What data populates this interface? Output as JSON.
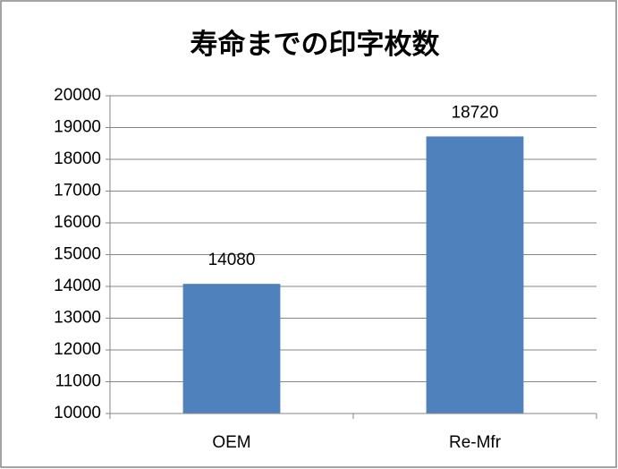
{
  "chart_data": {
    "type": "bar",
    "title": "寿命までの印字枚数",
    "categories": [
      "OEM",
      "Re-Mfr"
    ],
    "values": [
      14080,
      18720
    ],
    "color": "#4f81bd",
    "ylim": [
      10000,
      20000
    ],
    "yticks": [
      10000,
      11000,
      12000,
      13000,
      14000,
      15000,
      16000,
      17000,
      18000,
      19000,
      20000
    ],
    "grid": true
  }
}
